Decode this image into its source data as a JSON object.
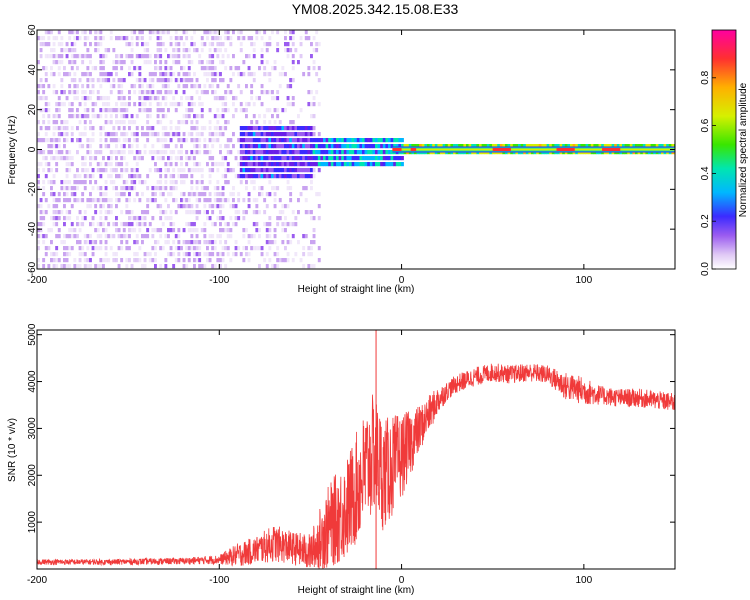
{
  "title": "YM08.2025.342.15.08.E33",
  "chart_data": [
    {
      "type": "heatmap",
      "title": "YM08.2025.342.15.08.E33",
      "xlabel": "Height of straight line (km)",
      "ylabel": "Frequency (Hz)",
      "xlim": [
        -200,
        150
      ],
      "ylim": [
        -60,
        60
      ],
      "xticks": [
        -200,
        -100,
        0,
        100
      ],
      "xtick_labels": [
        "-200",
        "-100",
        "0",
        "100"
      ],
      "yticks": [
        -60,
        -40,
        -20,
        0,
        20,
        40,
        60
      ],
      "ytick_labels": [
        "-60",
        "-40",
        "-20",
        "0",
        "20",
        "40",
        "60"
      ],
      "colorbar": {
        "label": "Normalized spectral amplitude",
        "range": [
          0.0,
          1.0
        ],
        "ticks": [
          0.0,
          0.2,
          0.4,
          0.6,
          0.8
        ],
        "tick_labels": [
          "0.0",
          "0.2",
          "0.4",
          "0.6",
          "0.8"
        ],
        "colormap": "rainbow (white-violet-blue-cyan-green-yellow-red)"
      },
      "description_points": [
        {
          "x_range": [
            -200,
            -95
          ],
          "character": "scattered noise over all frequencies",
          "amplitude": 0.15
        },
        {
          "x_range": [
            -95,
            -50
          ],
          "character": "energy concentrated near 0 Hz, widening",
          "amplitude": 0.25
        },
        {
          "x_range": [
            -50,
            0
          ],
          "character": "narrow band around 0 Hz",
          "amplitude": 0.4
        },
        {
          "x_range": [
            0,
            150
          ],
          "character": "sharp line at 0 Hz",
          "amplitude": 0.8
        }
      ],
      "colors": [
        "#ffffff",
        "#e6d6f5",
        "#c9a3f0",
        "#9b5cf0",
        "#6a1ee8",
        "#3b2bff",
        "#00b7ff",
        "#00e6b0",
        "#39e600",
        "#d6f000",
        "#ffb000",
        "#ff3030",
        "#ff00a0"
      ]
    },
    {
      "type": "line",
      "xlabel": "Height of straight line (km)",
      "ylabel": "SNR (10 * v/v)",
      "xlim": [
        -200,
        150
      ],
      "ylim": [
        0,
        5100
      ],
      "xticks": [
        -200,
        -100,
        0,
        100
      ],
      "xtick_labels": [
        "-200",
        "-100",
        "0",
        "100"
      ],
      "yticks": [
        1000,
        2000,
        3000,
        4000,
        5000
      ],
      "ytick_labels": [
        "1000",
        "2000",
        "3000",
        "4000",
        "5000"
      ],
      "series": [
        {
          "name": "SNR",
          "color": "#f03a3a",
          "x": [
            -200,
            -180,
            -160,
            -140,
            -120,
            -100,
            -90,
            -80,
            -70,
            -60,
            -50,
            -45,
            -40,
            -35,
            -30,
            -25,
            -20,
            -15,
            -10,
            -5,
            0,
            5,
            10,
            15,
            20,
            25,
            30,
            40,
            50,
            60,
            70,
            80,
            90,
            100,
            110,
            120,
            130,
            140,
            150
          ],
          "y": [
            150,
            150,
            150,
            160,
            170,
            200,
            300,
            400,
            550,
            450,
            350,
            600,
            900,
            1100,
            1300,
            1700,
            2100,
            2500,
            2000,
            2200,
            2400,
            2700,
            3000,
            3300,
            3600,
            3800,
            3950,
            4100,
            4200,
            4150,
            4200,
            4150,
            3900,
            3800,
            3700,
            3650,
            3650,
            3600,
            3550
          ],
          "noise": [
            60,
            60,
            60,
            70,
            70,
            100,
            250,
            300,
            400,
            350,
            400,
            700,
            900,
            1000,
            1100,
            1200,
            1300,
            1300,
            1200,
            1100,
            900,
            700,
            500,
            400,
            300,
            200,
            200,
            200,
            200,
            200,
            200,
            200,
            300,
            300,
            200,
            200,
            200,
            200,
            200
          ]
        }
      ],
      "spike": {
        "x": -14,
        "y": 5100
      }
    }
  ]
}
